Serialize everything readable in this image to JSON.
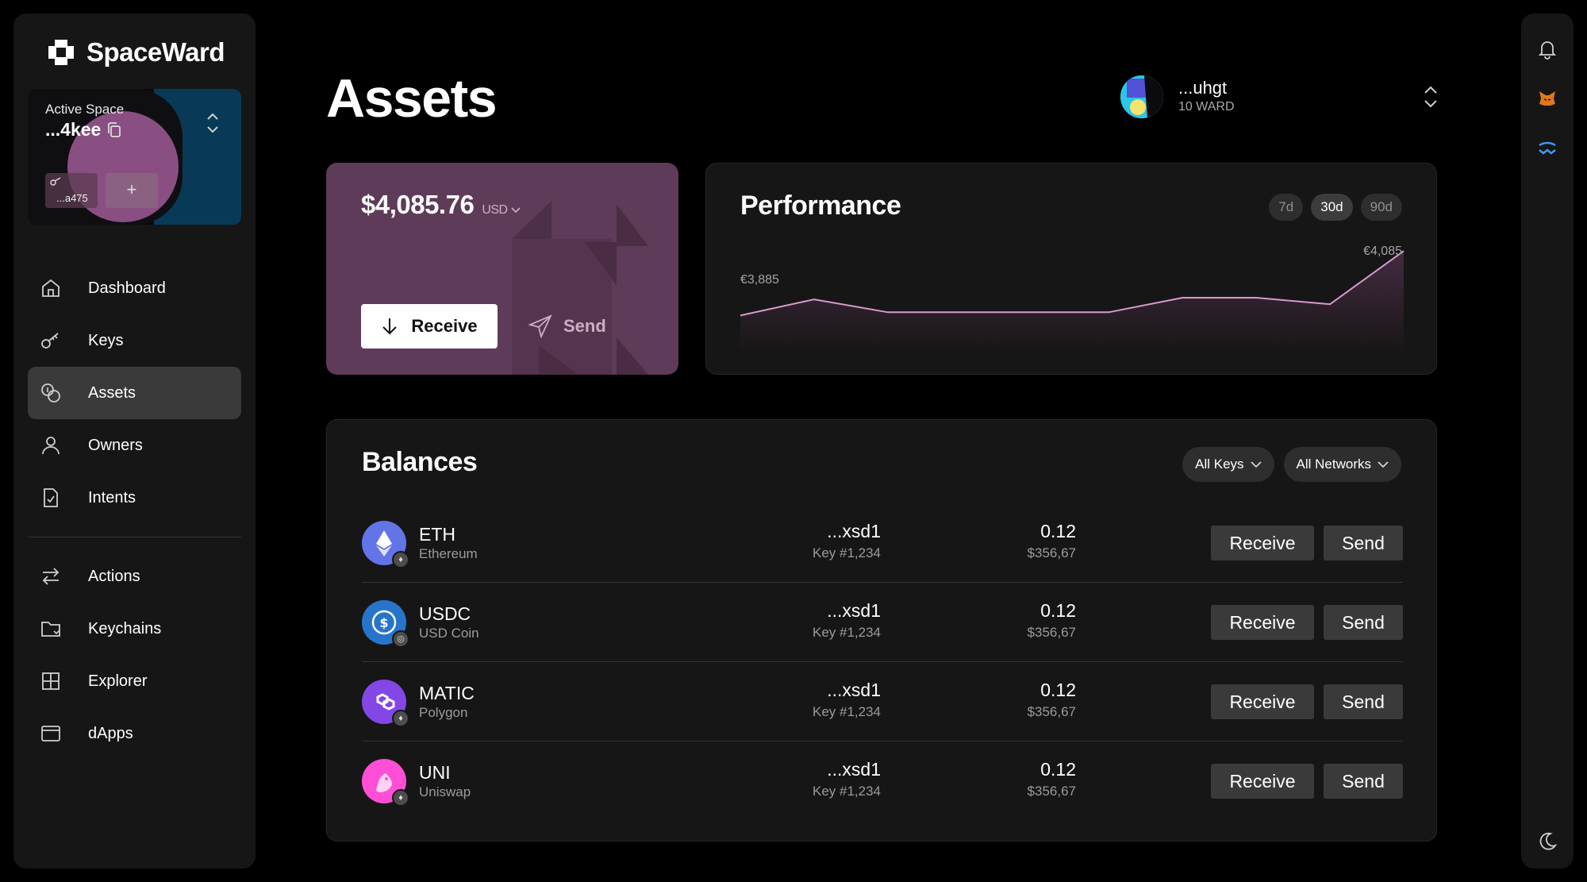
{
  "app": {
    "name": "SpaceWard"
  },
  "space": {
    "label": "Active Space",
    "address": "...4kee",
    "key": "...a475",
    "add": "+"
  },
  "nav": {
    "primary": [
      {
        "label": "Dashboard",
        "icon": "home-icon"
      },
      {
        "label": "Keys",
        "icon": "key-icon"
      },
      {
        "label": "Assets",
        "icon": "coins-icon"
      },
      {
        "label": "Owners",
        "icon": "user-icon"
      },
      {
        "label": "Intents",
        "icon": "document-check-icon"
      }
    ],
    "secondary": [
      {
        "label": "Actions",
        "icon": "arrows-icon"
      },
      {
        "label": "Keychains",
        "icon": "folder-icon"
      },
      {
        "label": "Explorer",
        "icon": "grid-icon"
      },
      {
        "label": "dApps",
        "icon": "browser-icon"
      }
    ],
    "active": "Assets"
  },
  "page": {
    "title": "Assets"
  },
  "account": {
    "name": "...uhgt",
    "balance": "10 WARD"
  },
  "balance_card": {
    "amount": "$4,085.76",
    "currency": "USD",
    "receive": "Receive",
    "send": "Send"
  },
  "performance": {
    "title": "Performance",
    "ranges": [
      "7d",
      "30d",
      "90d"
    ],
    "active_range": "30d",
    "start_label": "€3,885",
    "end_label": "€4,085"
  },
  "balances": {
    "title": "Balances",
    "filter_keys": "All Keys",
    "filter_networks": "All Networks",
    "rows": [
      {
        "symbol": "ETH",
        "name": "Ethereum",
        "address": "...xsd1",
        "key": "Key #1,234",
        "amount": "0.12",
        "value": "$356,67",
        "receive": "Receive",
        "send": "Send",
        "color": "#6274e8"
      },
      {
        "symbol": "USDC",
        "name": "USD Coin",
        "address": "...xsd1",
        "key": "Key #1,234",
        "amount": "0.12",
        "value": "$356,67",
        "receive": "Receive",
        "send": "Send",
        "color": "#2775ca"
      },
      {
        "symbol": "MATIC",
        "name": "Polygon",
        "address": "...xsd1",
        "key": "Key #1,234",
        "amount": "0.12",
        "value": "$356,67",
        "receive": "Receive",
        "send": "Send",
        "color": "#8247e5"
      },
      {
        "symbol": "UNI",
        "name": "Uniswap",
        "address": "...xsd1",
        "key": "Key #1,234",
        "amount": "0.12",
        "value": "$356,67",
        "receive": "Receive",
        "send": "Send",
        "color": "#ff4fd6"
      }
    ]
  },
  "chart_data": {
    "type": "area",
    "title": "Performance",
    "values": [
      3885,
      3935,
      3895,
      3895,
      3895,
      3895,
      3940,
      3940,
      3920,
      4085
    ],
    "ylim": [
      3785,
      4110
    ],
    "color": "#d79bcf"
  },
  "colors": {
    "accent": "#5e3b58",
    "surface": "#161616",
    "background": "#000000"
  }
}
